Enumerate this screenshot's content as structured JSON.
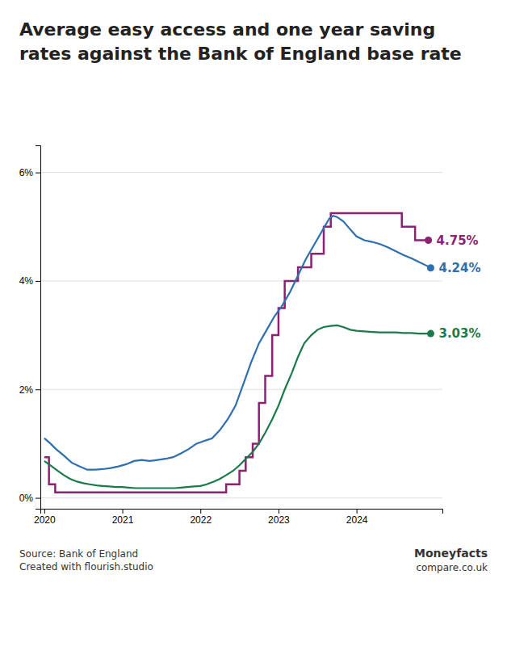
{
  "chart_data": {
    "type": "line",
    "title": "Average easy access and one year saving rates against the Bank of England base rate",
    "xlim": [
      2019.95,
      2025.1
    ],
    "xticks": [
      2020,
      2021,
      2022,
      2023,
      2024
    ],
    "ylim": [
      -0.2,
      6.5
    ],
    "yticks": [
      {
        "value": 0,
        "label": "0%"
      },
      {
        "value": 2,
        "label": "2%"
      },
      {
        "value": 4,
        "label": "4%"
      },
      {
        "value": 6,
        "label": "6%"
      }
    ],
    "grid": true,
    "series": [
      {
        "type": "step",
        "color": "#8B2272",
        "x": [
          2020.0,
          2020.06,
          2020.14,
          2022.25,
          2022.33,
          2022.5,
          2022.58,
          2022.67,
          2022.75,
          2022.83,
          2022.92,
          2023.0,
          2023.08,
          2023.25,
          2023.42,
          2023.58,
          2023.67,
          2024.5,
          2024.58,
          2024.75,
          2024.92
        ],
        "values": [
          0.75,
          0.25,
          0.1,
          0.1,
          0.25,
          0.5,
          0.75,
          1.0,
          1.75,
          2.25,
          3.0,
          3.5,
          4.0,
          4.25,
          4.5,
          5.0,
          5.25,
          5.25,
          5.0,
          4.75,
          4.75
        ]
      },
      {
        "type": "line",
        "color": "#2e6fad",
        "x": [
          2020.0,
          2020.08,
          2020.15,
          2020.25,
          2020.35,
          2020.45,
          2020.55,
          2020.65,
          2020.75,
          2020.85,
          2020.95,
          2021.05,
          2021.15,
          2021.25,
          2021.35,
          2021.45,
          2021.55,
          2021.65,
          2021.75,
          2021.85,
          2021.95,
          2022.05,
          2022.15,
          2022.25,
          2022.35,
          2022.45,
          2022.55,
          2022.65,
          2022.75,
          2022.85,
          2022.95,
          2023.05,
          2023.15,
          2023.25,
          2023.35,
          2023.45,
          2023.55,
          2023.65,
          2023.7,
          2023.75,
          2023.83,
          2023.92,
          2024.0,
          2024.1,
          2024.2,
          2024.3,
          2024.4,
          2024.5,
          2024.6,
          2024.7,
          2024.8,
          2024.9,
          2024.95
        ],
        "values": [
          1.1,
          1.0,
          0.9,
          0.78,
          0.65,
          0.58,
          0.52,
          0.52,
          0.53,
          0.55,
          0.58,
          0.62,
          0.68,
          0.7,
          0.68,
          0.7,
          0.72,
          0.75,
          0.82,
          0.9,
          1.0,
          1.05,
          1.1,
          1.25,
          1.45,
          1.7,
          2.1,
          2.5,
          2.85,
          3.1,
          3.35,
          3.55,
          3.8,
          4.1,
          4.4,
          4.65,
          4.9,
          5.15,
          5.2,
          5.18,
          5.1,
          4.95,
          4.82,
          4.75,
          4.72,
          4.68,
          4.62,
          4.55,
          4.48,
          4.42,
          4.35,
          4.28,
          4.24
        ]
      },
      {
        "type": "line",
        "color": "#1a7a4a",
        "x": [
          2020.0,
          2020.08,
          2020.17,
          2020.25,
          2020.33,
          2020.42,
          2020.5,
          2020.58,
          2020.67,
          2020.75,
          2020.83,
          2020.92,
          2021.0,
          2021.08,
          2021.17,
          2021.25,
          2021.33,
          2021.42,
          2021.5,
          2021.58,
          2021.67,
          2021.75,
          2021.83,
          2021.92,
          2022.0,
          2022.08,
          2022.17,
          2022.25,
          2022.33,
          2022.42,
          2022.5,
          2022.58,
          2022.67,
          2022.75,
          2022.83,
          2022.92,
          2023.0,
          2023.08,
          2023.17,
          2023.25,
          2023.33,
          2023.42,
          2023.5,
          2023.58,
          2023.67,
          2023.75,
          2023.83,
          2023.92,
          2024.0,
          2024.1,
          2024.2,
          2024.3,
          2024.4,
          2024.5,
          2024.6,
          2024.7,
          2024.8,
          2024.9,
          2024.95
        ],
        "values": [
          0.68,
          0.6,
          0.5,
          0.42,
          0.35,
          0.3,
          0.27,
          0.25,
          0.23,
          0.22,
          0.21,
          0.2,
          0.2,
          0.19,
          0.18,
          0.18,
          0.18,
          0.18,
          0.18,
          0.18,
          0.18,
          0.19,
          0.2,
          0.21,
          0.22,
          0.25,
          0.3,
          0.35,
          0.42,
          0.5,
          0.6,
          0.72,
          0.85,
          1.0,
          1.2,
          1.45,
          1.7,
          2.0,
          2.3,
          2.6,
          2.85,
          3.0,
          3.1,
          3.15,
          3.17,
          3.18,
          3.15,
          3.1,
          3.08,
          3.07,
          3.06,
          3.05,
          3.05,
          3.05,
          3.04,
          3.04,
          3.03,
          3.03,
          3.03
        ]
      }
    ],
    "annotations": [
      {
        "text": "4.75%",
        "x": 2024.92,
        "y": 4.75,
        "color": "#8B2272"
      },
      {
        "text": "4.24%",
        "x": 2024.95,
        "y": 4.24,
        "color": "#2e6fad"
      },
      {
        "text": "3.03%",
        "x": 2024.95,
        "y": 3.03,
        "color": "#1a7a4a"
      }
    ],
    "source": [
      "Source: Bank of England",
      "Created with flourish.studio"
    ],
    "brand": [
      "Moneyfacts",
      "compare.co.uk"
    ]
  }
}
